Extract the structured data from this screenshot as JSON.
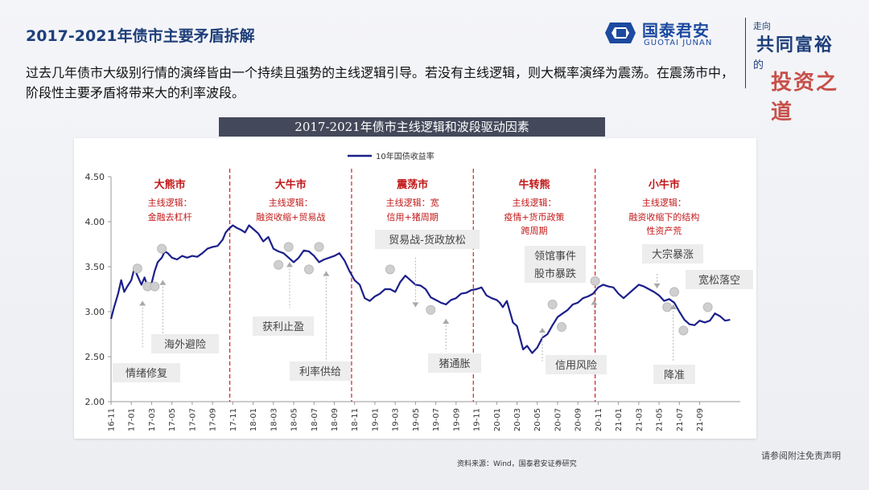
{
  "page_title": "2017-2021年债市主要矛盾拆解",
  "logo": {
    "cn": "国泰君安",
    "en": "GUOTAI JUNAN",
    "brand_color": "#1c4aa0"
  },
  "slogan": {
    "line1": "走向",
    "line2": "共同富裕",
    "line3": "的",
    "line4": "投资之道"
  },
  "description": "过去几年债市大级别行情的演绎皆由一个持续且强势的主线逻辑引导。若没有主线逻辑，则大概率演绎为震荡。在震荡市中，阶段性主要矛盾将带来大的利率波段。",
  "chart_banner": "2017-2021年债市主线逻辑和波段驱动因素",
  "source": "资料来源：Wind，国泰君安证券研究",
  "disclaimer": "请参阅附注免责声明",
  "chart_data": {
    "type": "line",
    "title": "2017-2021年债市主线逻辑和波段驱动因素",
    "legend": "10年国债收益率",
    "series_color": "#1b1f8a",
    "annotation_color": "#c21818",
    "ylim": [
      2.0,
      4.5
    ],
    "yticks": [
      "4.50",
      "4.00",
      "3.50",
      "3.00",
      "2.50",
      "2.00"
    ],
    "ytick_values": [
      4.5,
      4.0,
      3.5,
      3.0,
      2.5,
      2.0
    ],
    "xlim": [
      0,
      62
    ],
    "xticks": [
      "16-11",
      "17-01",
      "17-03",
      "17-05",
      "17-07",
      "17-09",
      "17-11",
      "18-01",
      "18-03",
      "18-05",
      "18-07",
      "18-09",
      "18-11",
      "19-01",
      "19-03",
      "19-05",
      "19-07",
      "19-09",
      "19-11",
      "20-01",
      "20-03",
      "20-05",
      "20-07",
      "20-09",
      "20-11",
      "21-01",
      "21-03",
      "21-05",
      "21-07",
      "21-09"
    ],
    "xtick_months": [
      0,
      2,
      4,
      6,
      8,
      10,
      12,
      14,
      16,
      18,
      20,
      22,
      24,
      26,
      28,
      30,
      32,
      34,
      36,
      38,
      40,
      42,
      44,
      46,
      48,
      50,
      52,
      54,
      56,
      58
    ],
    "x": [
      0,
      0.3,
      0.7,
      1,
      1.3,
      1.6,
      2,
      2.3,
      2.6,
      3,
      3.3,
      3.6,
      4,
      4.3,
      4.6,
      5,
      5.3,
      5.6,
      6,
      6.5,
      7,
      7.5,
      8,
      8.5,
      9,
      9.5,
      10,
      10.5,
      11,
      11.3,
      11.6,
      12,
      12.4,
      12.8,
      13.2,
      13.6,
      14,
      14.5,
      15,
      15.5,
      16,
      16.5,
      17,
      17.5,
      18,
      18.5,
      19,
      19.5,
      20,
      20.5,
      21,
      21.5,
      22,
      22.5,
      23,
      23.5,
      24,
      24.5,
      25,
      25.5,
      26,
      26.5,
      27,
      27.5,
      28,
      28.5,
      29,
      29.5,
      30,
      30.5,
      31,
      31.5,
      32,
      32.5,
      33,
      33.5,
      34,
      34.5,
      35,
      35.5,
      36,
      36.5,
      37,
      37.5,
      38,
      38.3,
      38.6,
      39,
      39.3,
      39.6,
      40,
      40.3,
      40.6,
      41,
      41.5,
      42,
      42.5,
      43,
      43.5,
      44,
      44.5,
      45,
      45.5,
      46,
      46.5,
      47,
      47.5,
      48,
      48.5,
      49,
      49.5,
      50,
      50.5,
      51,
      51.5,
      52,
      52.5,
      53,
      53.5,
      54,
      54.5,
      55,
      55.5,
      56,
      56.5,
      57,
      57.5,
      58,
      58.5,
      59,
      59.5,
      60,
      60.5,
      61
    ],
    "values": [
      2.92,
      3.05,
      3.2,
      3.35,
      3.22,
      3.28,
      3.35,
      3.48,
      3.4,
      3.3,
      3.38,
      3.28,
      3.32,
      3.45,
      3.55,
      3.6,
      3.67,
      3.65,
      3.6,
      3.58,
      3.62,
      3.6,
      3.62,
      3.61,
      3.65,
      3.7,
      3.72,
      3.73,
      3.8,
      3.88,
      3.92,
      3.96,
      3.93,
      3.91,
      3.88,
      3.96,
      3.92,
      3.87,
      3.78,
      3.83,
      3.7,
      3.67,
      3.65,
      3.6,
      3.55,
      3.6,
      3.68,
      3.67,
      3.62,
      3.55,
      3.58,
      3.6,
      3.62,
      3.65,
      3.57,
      3.45,
      3.35,
      3.3,
      3.15,
      3.12,
      3.17,
      3.2,
      3.25,
      3.25,
      3.22,
      3.33,
      3.4,
      3.35,
      3.3,
      3.29,
      3.25,
      3.16,
      3.13,
      3.1,
      3.08,
      3.13,
      3.15,
      3.2,
      3.21,
      3.24,
      3.25,
      3.27,
      3.18,
      3.15,
      3.13,
      3.1,
      3.05,
      3.12,
      3.0,
      2.88,
      2.84,
      2.71,
      2.58,
      2.62,
      2.54,
      2.6,
      2.71,
      2.75,
      2.85,
      2.94,
      2.98,
      3.02,
      3.08,
      3.1,
      3.15,
      3.17,
      3.2,
      3.27,
      3.3,
      3.28,
      3.27,
      3.2,
      3.15,
      3.2,
      3.25,
      3.3,
      3.28,
      3.25,
      3.22,
      3.18,
      3.12,
      3.14,
      3.1,
      3.0,
      2.91,
      2.86,
      2.85,
      2.9,
      2.88,
      2.9,
      2.98,
      2.95,
      2.9,
      2.91
    ],
    "region_dividers": [
      11.7,
      23.7,
      35.7,
      47.7
    ],
    "regions": [
      {
        "name": "大熊市",
        "logic_label": "主线逻辑：",
        "logic": [
          "金融去杠杆"
        ]
      },
      {
        "name": "大牛市",
        "logic_label": "主线逻辑：",
        "logic": [
          "融资收缩+贸易战"
        ]
      },
      {
        "name": "震荡市",
        "logic_label": "主线逻辑：宽",
        "logic": [
          "信用+猪周期"
        ]
      },
      {
        "name": "牛转熊",
        "logic_label": "主线逻辑：",
        "logic": [
          "疫情+货币政策",
          "跨周期"
        ]
      },
      {
        "name": "小牛市",
        "logic_label": "主线逻辑：",
        "logic": [
          "融资收缩下的结构",
          "性资产荒"
        ]
      }
    ],
    "callouts": [
      "情绪修复",
      "海外避险",
      "获利止盈",
      "利率供给",
      "贸易战-货政放松",
      "猪通胀",
      "领馆事件",
      "股市暴跌",
      "信用风险",
      "大宗暴涨",
      "宽松落空",
      "降准"
    ]
  }
}
